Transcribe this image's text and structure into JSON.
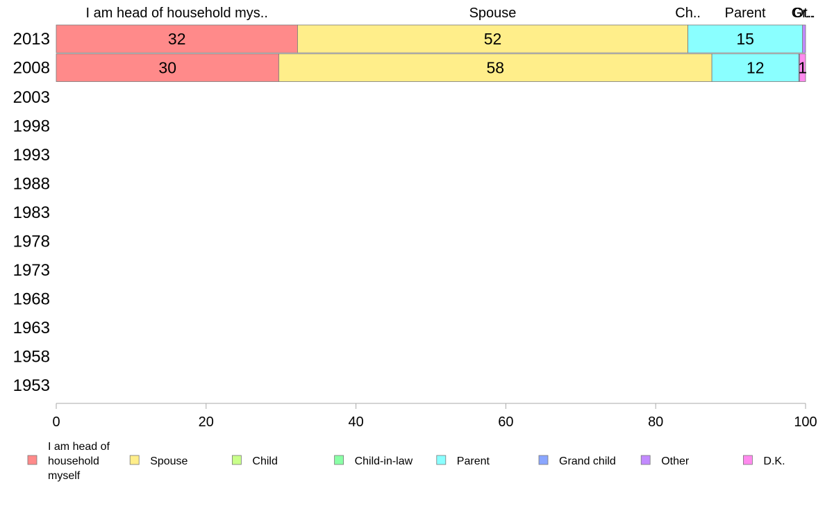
{
  "chart_data": {
    "type": "bar",
    "orientation": "horizontal-stacked-100",
    "categories": [
      "2013",
      "2008",
      "2003",
      "1998",
      "1993",
      "1988",
      "1983",
      "1978",
      "1973",
      "1968",
      "1963",
      "1958",
      "1953"
    ],
    "series": [
      {
        "name": "I am head of household myself",
        "header": "I am head of household mys..",
        "color": "#ff8a8a",
        "values": [
          32.2,
          29.7,
          null,
          null,
          null,
          null,
          null,
          null,
          null,
          null,
          null,
          null,
          null
        ],
        "labels": [
          "32",
          "30"
        ]
      },
      {
        "name": "Spouse",
        "header": "Spouse",
        "color": "#ffee8a",
        "values": [
          52.1,
          57.8,
          null,
          null,
          null,
          null,
          null,
          null,
          null,
          null,
          null,
          null,
          null
        ],
        "labels": [
          "52",
          "58"
        ]
      },
      {
        "name": "Child",
        "header": "Ch..",
        "color": "#c9ff8a",
        "values": [
          0,
          0,
          null,
          null,
          null,
          null,
          null,
          null,
          null,
          null,
          null,
          null,
          null
        ],
        "labels": [
          "",
          ""
        ]
      },
      {
        "name": "Child-in-law",
        "header": "",
        "color": "#8affa6",
        "values": [
          0,
          0,
          null,
          null,
          null,
          null,
          null,
          null,
          null,
          null,
          null,
          null,
          null
        ],
        "labels": [
          "",
          ""
        ]
      },
      {
        "name": "Parent",
        "header": "Parent",
        "color": "#8affff",
        "values": [
          15.3,
          11.6,
          null,
          null,
          null,
          null,
          null,
          null,
          null,
          null,
          null,
          null,
          null
        ],
        "labels": [
          "15",
          "12"
        ]
      },
      {
        "name": "Grand child",
        "header": "Gr..",
        "color": "#8aa6ff",
        "values": [
          0,
          0,
          null,
          null,
          null,
          null,
          null,
          null,
          null,
          null,
          null,
          null,
          null
        ],
        "labels": [
          "",
          ""
        ]
      },
      {
        "name": "Other",
        "header": "Ot..",
        "color": "#c28aff",
        "values": [
          0.4,
          0.1,
          null,
          null,
          null,
          null,
          null,
          null,
          null,
          null,
          null,
          null,
          null
        ],
        "labels": [
          "",
          ""
        ]
      },
      {
        "name": "D.K.",
        "header": "",
        "color": "#ff8aee",
        "values": [
          0,
          0.8,
          null,
          null,
          null,
          null,
          null,
          null,
          null,
          null,
          null,
          null,
          null
        ],
        "labels": [
          "",
          "1"
        ]
      }
    ],
    "xlim": [
      0,
      100
    ],
    "xticks": [
      "0",
      "20",
      "40",
      "60",
      "80",
      "100"
    ],
    "grid": false,
    "legend": {
      "position": "bottom",
      "items": [
        {
          "lines": [
            "I am head of",
            "household",
            "myself"
          ],
          "color": "#ff8a8a"
        },
        {
          "lines": [
            "Spouse"
          ],
          "color": "#ffee8a"
        },
        {
          "lines": [
            "Child"
          ],
          "color": "#c9ff8a"
        },
        {
          "lines": [
            "Child-in-law"
          ],
          "color": "#8affa6"
        },
        {
          "lines": [
            "Parent"
          ],
          "color": "#8affff"
        },
        {
          "lines": [
            "Grand child"
          ],
          "color": "#8aa6ff"
        },
        {
          "lines": [
            "Other"
          ],
          "color": "#c28aff"
        },
        {
          "lines": [
            "D.K."
          ],
          "color": "#ff8aee"
        }
      ]
    }
  }
}
